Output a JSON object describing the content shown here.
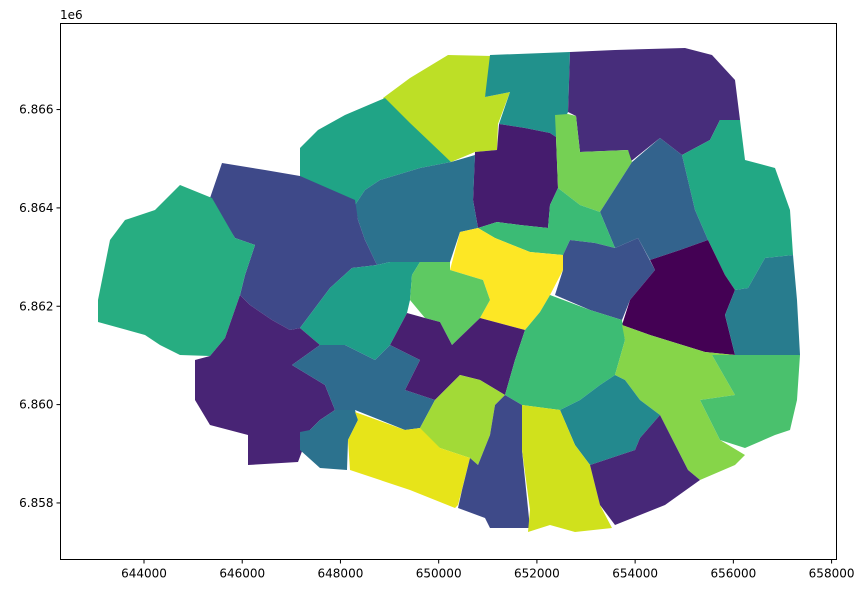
{
  "chart_data": {
    "type": "choropleth",
    "colormap": "viridis",
    "x_axis": {
      "ticks": [
        644000,
        646000,
        648000,
        650000,
        652000,
        654000,
        656000,
        658000
      ],
      "tick_labels": [
        "644000",
        "646000",
        "648000",
        "650000",
        "652000",
        "654000",
        "656000",
        "658000"
      ],
      "range": [
        642300,
        658100
      ]
    },
    "y_axis": {
      "ticks": [
        6858000,
        6860000,
        6862000,
        6864000,
        6866000
      ],
      "tick_labels": [
        "6.858",
        "6.860",
        "6.862",
        "6.864",
        "6.866"
      ],
      "offset_label": "1e6",
      "range": [
        6856850,
        6867750
      ]
    },
    "regions": [
      {
        "id": "r1",
        "color": "#bddf26"
      },
      {
        "id": "r2",
        "color": "#21918c"
      },
      {
        "id": "r3",
        "color": "#472d7b"
      },
      {
        "id": "r4",
        "color": "#20a486"
      },
      {
        "id": "r5",
        "color": "#451c6e"
      },
      {
        "id": "r6",
        "color": "#75d054"
      },
      {
        "id": "r7",
        "color": "#2c728e"
      },
      {
        "id": "r8",
        "color": "#3e4989"
      },
      {
        "id": "r9",
        "color": "#27ad81"
      },
      {
        "id": "r10",
        "color": "#22a884"
      },
      {
        "id": "r11",
        "color": "#33638d"
      },
      {
        "id": "r12",
        "color": "#3bbb75"
      },
      {
        "id": "r13",
        "color": "#fde725"
      },
      {
        "id": "r14",
        "color": "#3b528b"
      },
      {
        "id": "r15",
        "color": "#440154"
      },
      {
        "id": "r16",
        "color": "#1f9e89"
      },
      {
        "id": "r17",
        "color": "#5ec962"
      },
      {
        "id": "r18",
        "color": "#287c8e"
      },
      {
        "id": "r19",
        "color": "#482475"
      },
      {
        "id": "r20",
        "color": "#2f6b8e"
      },
      {
        "id": "r21",
        "color": "#481f70"
      },
      {
        "id": "r22",
        "color": "#3dbc74"
      },
      {
        "id": "r23",
        "color": "#86d549"
      },
      {
        "id": "r24",
        "color": "#4ac16d"
      },
      {
        "id": "r25",
        "color": "#a2da37"
      },
      {
        "id": "r26",
        "color": "#23898e"
      },
      {
        "id": "r27",
        "color": "#2c728e"
      },
      {
        "id": "r28",
        "color": "#e7e419"
      },
      {
        "id": "r29",
        "color": "#3e4a89"
      },
      {
        "id": "r30",
        "color": "#d0e11c"
      },
      {
        "id": "r31",
        "color": "#472878"
      }
    ]
  }
}
